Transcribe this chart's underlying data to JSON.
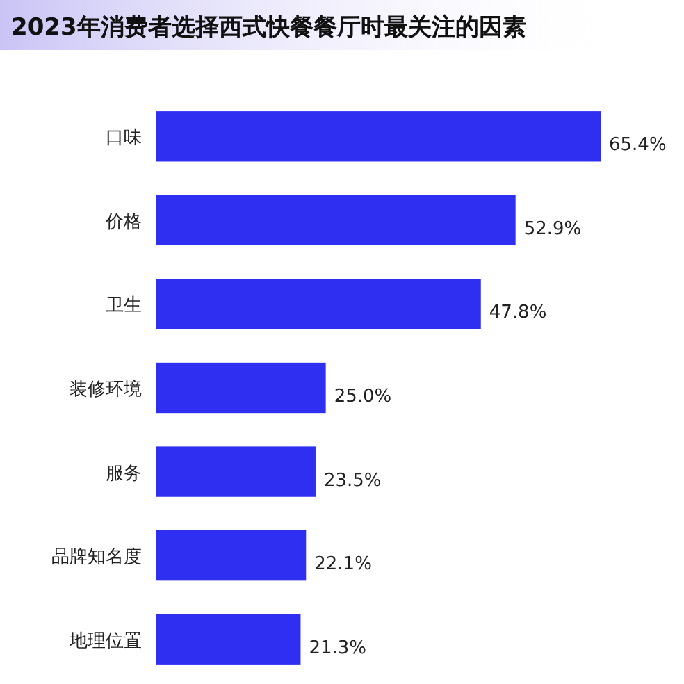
{
  "chart_data": {
    "type": "bar",
    "orientation": "horizontal",
    "title": "2023年消费者选择西式快餐餐厅时最关注的因素",
    "categories": [
      "口味",
      "价格",
      "卫生",
      "装修环境",
      "服务",
      "品牌知名度",
      "地理位置"
    ],
    "values": [
      65.4,
      52.9,
      47.8,
      25.0,
      23.5,
      22.1,
      21.3
    ],
    "value_labels": [
      "65.4%",
      "52.9%",
      "47.8%",
      "25.0%",
      "23.5%",
      "22.1%",
      "21.3%"
    ],
    "color": "#2f2ff2"
  }
}
